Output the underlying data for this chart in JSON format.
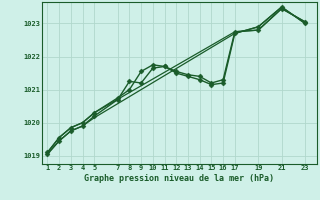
{
  "bg_color": "#cff0e8",
  "grid_color": "#b0d8cc",
  "line_color": "#1a5c2a",
  "title": "Graphe pression niveau de la mer (hPa)",
  "ylim": [
    1018.75,
    1023.65
  ],
  "yticks": [
    1019,
    1020,
    1021,
    1022,
    1023
  ],
  "xlim": [
    0.5,
    24.0
  ],
  "xticks": [
    1,
    2,
    3,
    4,
    5,
    7,
    8,
    9,
    10,
    11,
    12,
    13,
    14,
    15,
    16,
    17,
    19,
    21,
    23
  ],
  "series": [
    {
      "x": [
        1,
        2,
        3,
        4,
        5,
        7,
        8,
        9,
        10,
        11,
        12,
        13,
        14,
        15,
        16,
        17,
        19,
        21,
        23
      ],
      "y": [
        1019.1,
        1019.55,
        1019.85,
        1020.0,
        1020.3,
        1020.75,
        1021.0,
        1021.55,
        1021.75,
        1021.7,
        1021.55,
        1021.45,
        1021.4,
        1021.2,
        1021.3,
        1022.75,
        1022.8,
        1023.45,
        1023.05
      ],
      "marker": "D",
      "markersize": 2.5,
      "lw": 1.0
    },
    {
      "x": [
        1,
        2,
        3,
        4,
        5,
        7,
        8,
        9,
        10,
        11,
        12,
        13,
        14,
        15,
        16,
        17,
        19,
        21,
        23
      ],
      "y": [
        1019.05,
        1019.45,
        1019.75,
        1019.9,
        1020.2,
        1020.7,
        1021.25,
        1021.2,
        1021.65,
        1021.7,
        1021.5,
        1021.4,
        1021.3,
        1021.15,
        1021.2,
        1022.7,
        1022.9,
        1023.5,
        1023.0
      ],
      "marker": "D",
      "markersize": 2.5,
      "lw": 1.0
    },
    {
      "x": [
        1,
        2,
        3,
        4,
        5,
        17,
        19,
        21,
        23
      ],
      "y": [
        1019.05,
        1019.45,
        1019.75,
        1019.9,
        1020.15,
        1022.7,
        1022.9,
        1023.5,
        1023.0
      ],
      "marker": null,
      "markersize": 0,
      "lw": 0.9
    },
    {
      "x": [
        1,
        2,
        3,
        4,
        5,
        17,
        19,
        21,
        23
      ],
      "y": [
        1019.1,
        1019.55,
        1019.85,
        1020.0,
        1020.3,
        1022.75,
        1022.8,
        1023.45,
        1023.05
      ],
      "marker": null,
      "markersize": 0,
      "lw": 0.9
    }
  ]
}
